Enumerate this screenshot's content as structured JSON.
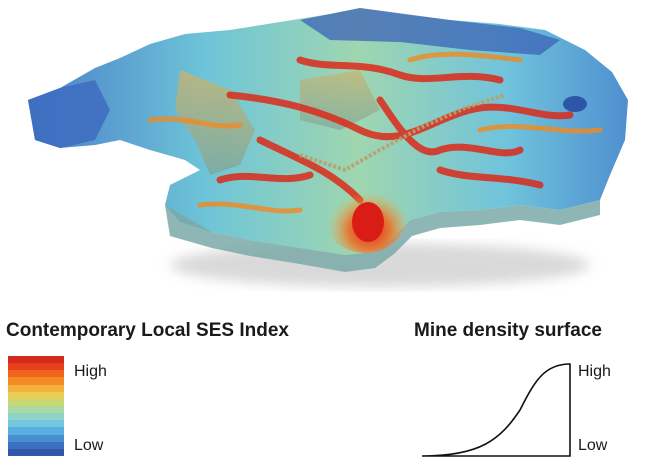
{
  "ses_legend": {
    "title": "Contemporary Local SES Index",
    "high_label": "High",
    "low_label": "Low",
    "ramp_colors": [
      "#d32a1c",
      "#e8401c",
      "#f0651e",
      "#f38b22",
      "#f3b03a",
      "#e9cd55",
      "#c8d775",
      "#a9d8a1",
      "#8fd3c8",
      "#74c7de",
      "#5aaee0",
      "#4690d2",
      "#3a70c0",
      "#3357a8"
    ]
  },
  "mine_legend": {
    "title": "Mine density surface",
    "high_label": "High",
    "low_label": "Low"
  }
}
